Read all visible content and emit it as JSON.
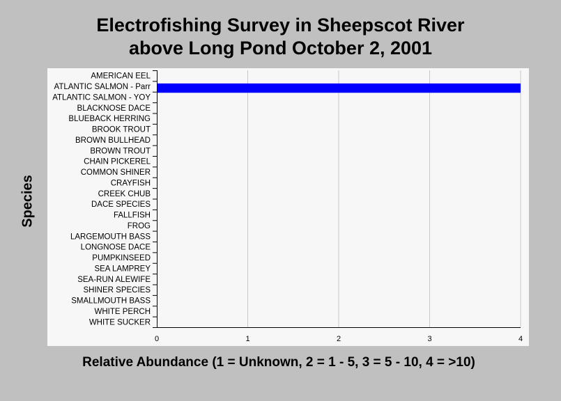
{
  "chart_data": {
    "type": "bar",
    "orientation": "horizontal",
    "title_line1": "Electrofishing Survey in Sheepscot River",
    "title_line2": "above Long Pond October 2, 2001",
    "xlabel": "Relative Abundance (1 = Unknown, 2 = 1 - 5, 3 = 5 - 10, 4 = >10)",
    "ylabel": "Species",
    "xlim": [
      0,
      4
    ],
    "xticks": [
      "0",
      "1",
      "2",
      "3",
      "4"
    ],
    "grid": "vertical",
    "bar_color": "#0000ff",
    "categories": [
      "AMERICAN EEL",
      "ATLANTIC SALMON - Parr",
      "ATLANTIC SALMON - YOY",
      "BLACKNOSE DACE",
      "BLUEBACK HERRING",
      "BROOK TROUT",
      "BROWN BULLHEAD",
      "BROWN TROUT",
      "CHAIN PICKEREL",
      "COMMON SHINER",
      "CRAYFISH",
      "CREEK CHUB",
      "DACE SPECIES",
      "FALLFISH",
      "FROG",
      "LARGEMOUTH BASS",
      "LONGNOSE DACE",
      "PUMPKINSEED",
      "SEA LAMPREY",
      "SEA-RUN ALEWIFE",
      "SHINER SPECIES",
      "SMALLMOUTH BASS",
      "WHITE PERCH",
      "WHITE SUCKER"
    ],
    "values": [
      0,
      4,
      0,
      0,
      0,
      0,
      0,
      0,
      0,
      0,
      0,
      0,
      0,
      0,
      0,
      0,
      0,
      0,
      0,
      0,
      0,
      0,
      0,
      0
    ]
  }
}
